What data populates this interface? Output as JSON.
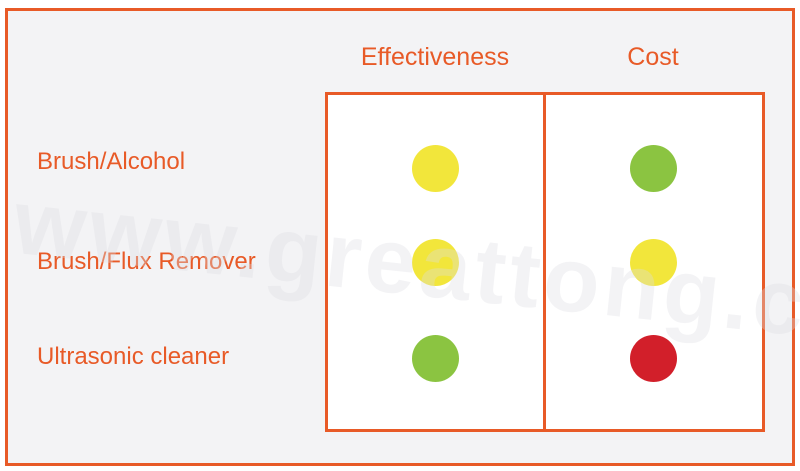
{
  "columns": [
    "Effectiveness",
    "Cost"
  ],
  "rows": [
    {
      "label": "Brush/Alcohol",
      "ratings": [
        "yellow",
        "green"
      ]
    },
    {
      "label": "Brush/Flux Remover",
      "ratings": [
        "yellow",
        "yellow"
      ]
    },
    {
      "label": "Ultrasonic cleaner",
      "ratings": [
        "green",
        "red"
      ]
    }
  ],
  "colors": {
    "accent": "#E85A27",
    "green": "#8BC441",
    "yellow": "#F2E63B",
    "red": "#D21F2A"
  },
  "watermark": "www.greattong.com"
}
